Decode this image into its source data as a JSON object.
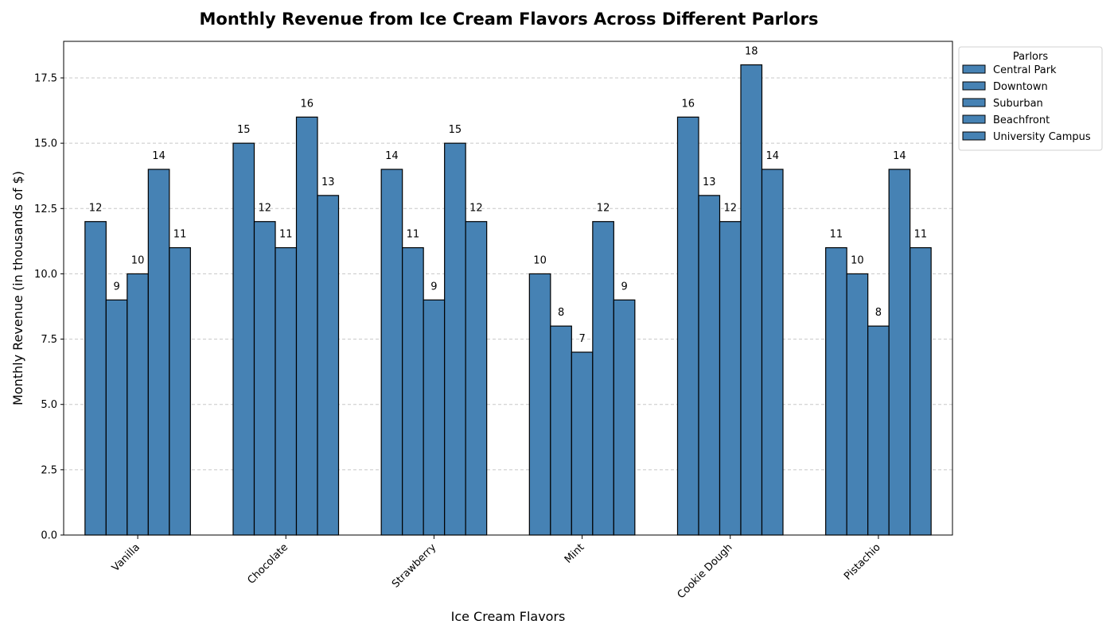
{
  "chart_data": {
    "type": "bar",
    "title": "Monthly Revenue from Ice Cream Flavors Across Different Parlors",
    "xlabel": "Ice Cream Flavors",
    "ylabel": "Monthly Revenue (in thousands of $)",
    "categories": [
      "Vanilla",
      "Chocolate",
      "Strawberry",
      "Mint",
      "Cookie Dough",
      "Pistachio"
    ],
    "series": [
      {
        "name": "Central Park",
        "values": [
          12,
          15,
          14,
          10,
          16,
          11
        ]
      },
      {
        "name": "Downtown",
        "values": [
          9,
          12,
          11,
          8,
          13,
          10
        ]
      },
      {
        "name": "Suburban",
        "values": [
          10,
          11,
          9,
          7,
          12,
          8
        ]
      },
      {
        "name": "Beachfront",
        "values": [
          14,
          16,
          15,
          12,
          18,
          14
        ]
      },
      {
        "name": "University Campus",
        "values": [
          11,
          13,
          12,
          9,
          14,
          11
        ]
      }
    ],
    "ylim": [
      0,
      18.9
    ],
    "yticks": [
      "0.0",
      "2.5",
      "5.0",
      "7.5",
      "10.0",
      "12.5",
      "15.0",
      "17.5"
    ],
    "grid": "y-dashed",
    "bar_color": "#4682b4",
    "bar_edge_color": "#000000",
    "legend": {
      "title": "Parlors",
      "placement": "outside-top-right"
    }
  }
}
